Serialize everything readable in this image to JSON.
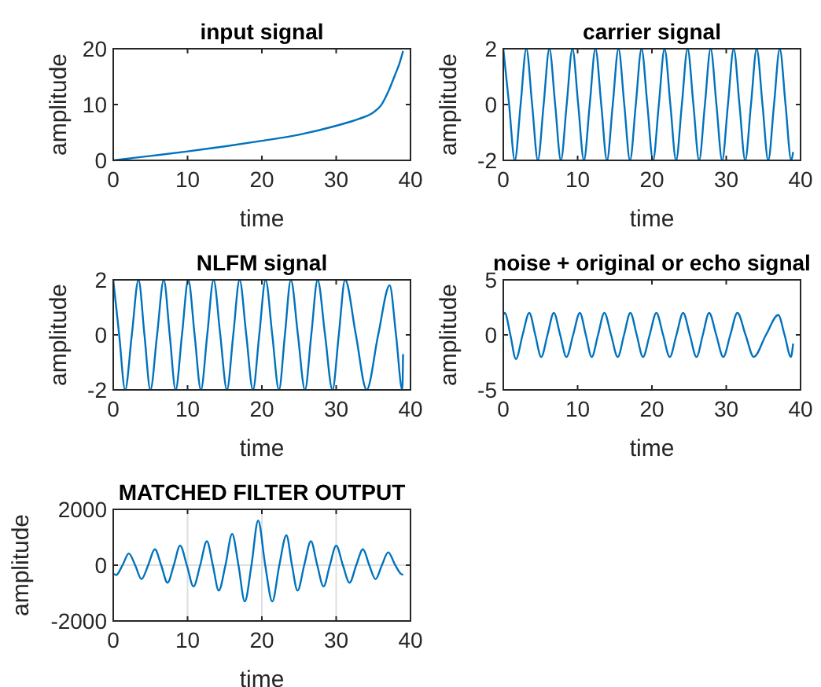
{
  "chart_data": [
    {
      "type": "line",
      "title": "input signal",
      "xlabel": "time",
      "ylabel": "amplitude",
      "xlim": [
        0,
        40
      ],
      "xticks": [
        0,
        10,
        20,
        30,
        40
      ],
      "ylim": [
        0,
        20
      ],
      "yticks": [
        0,
        10,
        20
      ],
      "grid": false,
      "series": [
        {
          "color": "#0072bd",
          "x": [
            0,
            5,
            10,
            15,
            20,
            25,
            30,
            33,
            35,
            36,
            37,
            38,
            38.5,
            39
          ],
          "values": [
            0,
            0.8,
            1.6,
            2.5,
            3.5,
            4.6,
            6.2,
            7.4,
            8.6,
            9.8,
            12.3,
            15.6,
            17.3,
            19.6
          ]
        }
      ]
    },
    {
      "type": "line",
      "title": "carrier signal",
      "xlabel": "time",
      "ylabel": "amplitude",
      "xlim": [
        0,
        40
      ],
      "xticks": [
        0,
        10,
        20,
        30,
        40
      ],
      "ylim": [
        -2,
        2
      ],
      "yticks": [
        -2,
        0,
        2
      ],
      "grid": false,
      "series": [
        {
          "color": "#0072bd",
          "x": [
            0,
            0.78,
            1.55,
            2.33,
            3.1,
            3.88,
            4.65,
            5.43,
            6.2,
            6.98,
            7.75,
            8.53,
            9.3,
            10.08,
            10.85,
            11.63,
            12.4,
            13.18,
            13.95,
            14.73,
            15.5,
            16.28,
            17.05,
            17.83,
            18.6,
            19.38,
            20.15,
            20.93,
            21.7,
            22.48,
            23.25,
            24.03,
            24.8,
            25.58,
            26.35,
            27.13,
            27.9,
            28.68,
            29.45,
            30.23,
            31,
            31.78,
            32.55,
            33.33,
            34.1,
            34.88,
            35.65,
            36.43,
            37.2,
            37.98,
            38.75,
            39
          ],
          "values": [
            2,
            0,
            -2,
            0,
            2,
            0,
            -2,
            0,
            2,
            0,
            -2,
            0,
            2,
            0,
            -2,
            0,
            2,
            0,
            -2,
            0,
            2,
            0,
            -2,
            0,
            2,
            0,
            -2,
            0,
            2,
            0,
            -2,
            0,
            2,
            0,
            -2,
            0,
            2,
            0,
            -2,
            0,
            2,
            0,
            -2,
            0,
            2,
            0,
            -2,
            0,
            2,
            0,
            -2,
            -1.7
          ]
        }
      ]
    },
    {
      "type": "line",
      "title": "NLFM signal",
      "xlabel": "time",
      "ylabel": "amplitude",
      "xlim": [
        0,
        40
      ],
      "xticks": [
        0,
        10,
        20,
        30,
        40
      ],
      "ylim": [
        -2,
        2
      ],
      "yticks": [
        -2,
        0,
        2
      ],
      "grid": false,
      "series": [
        {
          "color": "#0072bd",
          "x": [
            0,
            0.8,
            1.6,
            2.5,
            3.4,
            4.2,
            5.0,
            5.9,
            6.8,
            7.6,
            8.4,
            9.25,
            10.1,
            10.95,
            11.8,
            12.65,
            13.5,
            14.4,
            15.3,
            16.15,
            17.0,
            17.9,
            18.8,
            19.65,
            20.5,
            21.4,
            22.3,
            23.1,
            23.9,
            24.85,
            25.8,
            26.65,
            27.5,
            28.5,
            29.5,
            30.35,
            31.2,
            32.65,
            34.1,
            35.65,
            37.2,
            38.05,
            38.9,
            39
          ],
          "values": [
            2,
            0,
            -2,
            0,
            2,
            0,
            -2,
            0,
            2,
            0,
            -2,
            0,
            2,
            0,
            -2,
            0,
            2,
            0,
            -2,
            0,
            2,
            0,
            -2,
            0,
            2,
            0,
            -2,
            0,
            2,
            0,
            -2,
            0,
            2,
            0,
            -2,
            0,
            2,
            0,
            -2,
            0,
            1.8,
            0,
            -2,
            -0.7
          ]
        }
      ]
    },
    {
      "type": "line",
      "title": "noise + original or echo signal",
      "xlabel": "time",
      "ylabel": "amplitude",
      "xlim": [
        0,
        40
      ],
      "xticks": [
        0,
        10,
        20,
        30,
        40
      ],
      "ylim": [
        -5,
        5
      ],
      "yticks": [
        -5,
        0,
        5
      ],
      "grid": false,
      "series": [
        {
          "color": "#0072bd",
          "x": [
            0,
            0.2,
            0.95,
            1.7,
            2.6,
            3.5,
            4.3,
            5.1,
            5.95,
            6.8,
            7.65,
            8.5,
            9.4,
            10.3,
            11.1,
            11.9,
            12.75,
            13.6,
            14.5,
            15.4,
            16.25,
            17.1,
            17.95,
            18.8,
            19.7,
            20.6,
            21.5,
            22.4,
            23.3,
            24.2,
            25.1,
            26.0,
            26.85,
            27.7,
            28.65,
            29.6,
            30.55,
            31.5,
            32.6,
            33.7,
            35.35,
            37.0,
            37.85,
            38.7,
            39
          ],
          "values": [
            1.8,
            2,
            0,
            -2.2,
            0,
            2,
            0,
            -2,
            0,
            2,
            0,
            -2,
            0,
            2,
            0,
            -2,
            0,
            2,
            0,
            -2,
            0,
            2,
            0,
            -2,
            0,
            2,
            0,
            -2,
            0,
            2,
            0,
            -2,
            0,
            2,
            0,
            -2,
            0,
            2,
            0,
            -2,
            0,
            1.8,
            0,
            -2,
            -0.8
          ]
        }
      ]
    },
    {
      "type": "line",
      "title": "MATCHED FILTER OUTPUT",
      "xlabel": "time",
      "ylabel": "amplitude",
      "xlim": [
        0,
        40
      ],
      "xticks": [
        0,
        10,
        20,
        30,
        40
      ],
      "ylim": [
        -2000,
        2000
      ],
      "yticks": [
        -2000,
        0,
        2000
      ],
      "grid": true,
      "series": [
        {
          "color": "#0072bd",
          "x": [
            0,
            0.4,
            1.25,
            2.1,
            2.95,
            3.8,
            4.7,
            5.6,
            6.45,
            7.3,
            8.15,
            9.0,
            9.9,
            10.8,
            11.7,
            12.6,
            13.4,
            14.2,
            15.1,
            16.0,
            16.85,
            17.7,
            18.6,
            19.5,
            20.45,
            21.4,
            22.35,
            23.3,
            24.05,
            24.8,
            25.7,
            26.6,
            27.45,
            28.3,
            29.15,
            30.0,
            30.9,
            31.8,
            32.7,
            33.6,
            34.45,
            35.3,
            36.15,
            37.0,
            37.95,
            38.9,
            39
          ],
          "values": [
            -300,
            -350,
            0,
            420,
            0,
            -500,
            0,
            570,
            0,
            -630,
            0,
            700,
            0,
            -760,
            0,
            860,
            0,
            -910,
            0,
            1120,
            0,
            -1300,
            0,
            1600,
            0,
            -1300,
            0,
            1070,
            0,
            -910,
            0,
            860,
            0,
            -760,
            0,
            700,
            0,
            -630,
            0,
            570,
            0,
            -500,
            0,
            460,
            0,
            -340,
            -320
          ]
        }
      ]
    }
  ]
}
